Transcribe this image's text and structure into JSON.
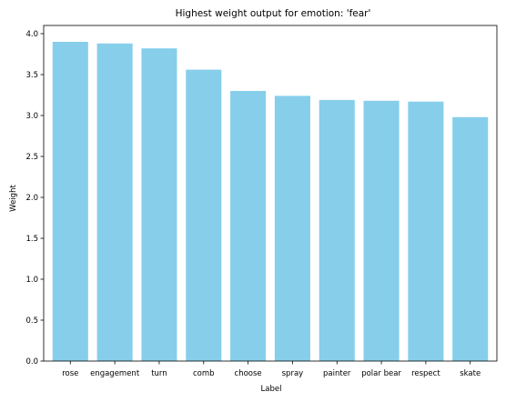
{
  "chart_data": {
    "type": "bar",
    "title": "Highest weight output for emotion: 'fear'",
    "xlabel": "Label",
    "ylabel": "Weight",
    "categories": [
      "rose",
      "engagement",
      "turn",
      "comb",
      "choose",
      "spray",
      "painter",
      "polar bear",
      "respect",
      "skate"
    ],
    "values": [
      3.9,
      3.88,
      3.82,
      3.56,
      3.3,
      3.24,
      3.19,
      3.18,
      3.17,
      2.98
    ],
    "yticks": [
      "0.0",
      "0.5",
      "1.0",
      "1.5",
      "2.0",
      "2.5",
      "3.0",
      "3.5",
      "4.0"
    ],
    "ylim": [
      0,
      4.1
    ],
    "grid": false,
    "bar_color": "#87CEEB"
  }
}
